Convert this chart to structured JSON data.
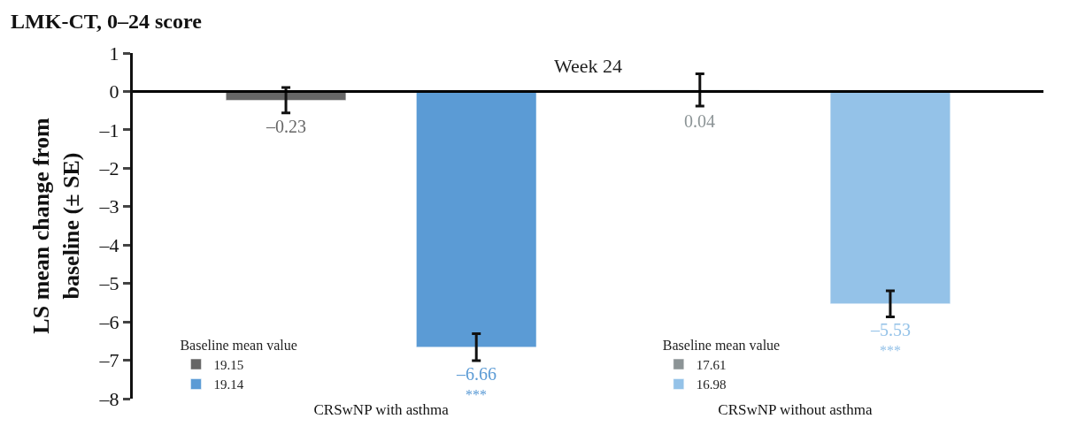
{
  "chart_data": {
    "type": "bar",
    "title": "LMK-CT, 0–24 score",
    "ylabel": "LS mean change from baseline (± SE)",
    "legend_title": "Baseline mean value",
    "categories": [
      "CRSwNP with asthma",
      "CRSwNP without asthma"
    ],
    "series": [
      {
        "name": "19.15",
        "color": "#666666",
        "values": [
          -0.23,
          null
        ],
        "errors": [
          0.33,
          null
        ],
        "value_labels": [
          "–0.23",
          null
        ]
      },
      {
        "name": "19.14",
        "color": "#5b9bd5",
        "values": [
          -6.66,
          null
        ],
        "errors": [
          0.35,
          null
        ],
        "value_labels": [
          "–6.66",
          null
        ]
      },
      {
        "name": "17.61",
        "color": "#8c9496",
        "values": [
          null,
          0.04
        ],
        "errors": [
          null,
          0.42
        ],
        "value_labels": [
          null,
          "0.04"
        ]
      },
      {
        "name": "16.98",
        "color": "#94c2e8",
        "values": [
          null,
          -5.53
        ],
        "errors": [
          null,
          0.34
        ],
        "value_labels": [
          null,
          "–5.53"
        ]
      }
    ],
    "annotations": [
      "Week 24",
      "***",
      "***"
    ],
    "ylim": [
      -8,
      1
    ],
    "yticks": [
      {
        "value": -8,
        "label": "–8"
      },
      {
        "value": -7,
        "label": "–7"
      },
      {
        "value": -6,
        "label": "–6"
      },
      {
        "value": -5,
        "label": "–5"
      },
      {
        "value": -4,
        "label": "–4"
      },
      {
        "value": -3,
        "label": "–3"
      },
      {
        "value": -2,
        "label": "–2"
      },
      {
        "value": -1,
        "label": "–1"
      },
      0,
      1
    ],
    "ref_lines": [
      {
        "axis": "y",
        "value": 0,
        "color": "#000000"
      }
    ],
    "grid": false,
    "legend": "bottom"
  }
}
